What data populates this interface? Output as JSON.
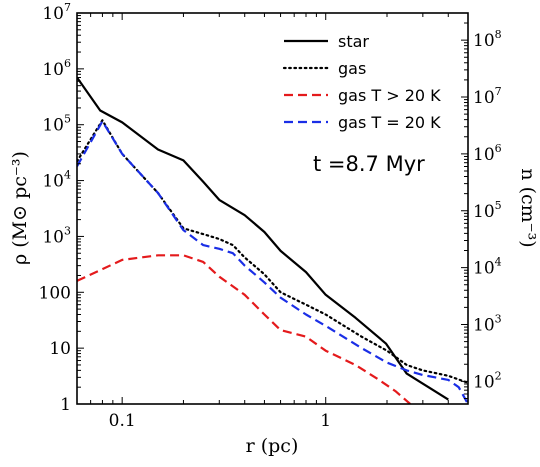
{
  "chart_data": {
    "type": "line",
    "xlabel": "r (pc)",
    "ylabel": "ρ (M⊙ pc⁻³)",
    "ylabel2": "n (cm⁻³)",
    "xscale": "log",
    "yscale": "log",
    "xlim": [
      0.06,
      5.0
    ],
    "ylim": [
      1,
      10000000
    ],
    "y2lim": [
      40,
      300000000
    ],
    "annotation": "t =8.7 Myr",
    "legend_position": "top-right",
    "x_ticks": [
      {
        "value": 0.1,
        "label": "0.1"
      },
      {
        "value": 1,
        "label": "1"
      }
    ],
    "y_ticks": [
      {
        "value": 1,
        "base": "1",
        "exp": ""
      },
      {
        "value": 10,
        "base": "10",
        "exp": ""
      },
      {
        "value": 100,
        "base": "100",
        "exp": ""
      },
      {
        "value": 1000,
        "base": "10",
        "exp": "3"
      },
      {
        "value": 10000,
        "base": "10",
        "exp": "4"
      },
      {
        "value": 100000,
        "base": "10",
        "exp": "5"
      },
      {
        "value": 1000000,
        "base": "10",
        "exp": "6"
      },
      {
        "value": 10000000,
        "base": "10",
        "exp": "7"
      }
    ],
    "y2_ticks": [
      {
        "value": 100,
        "base": "10",
        "exp": "2"
      },
      {
        "value": 1000,
        "base": "10",
        "exp": "3"
      },
      {
        "value": 10000,
        "base": "10",
        "exp": "4"
      },
      {
        "value": 100000,
        "base": "10",
        "exp": "5"
      },
      {
        "value": 1000000,
        "base": "10",
        "exp": "6"
      },
      {
        "value": 10000000,
        "base": "10",
        "exp": "7"
      },
      {
        "value": 100000000,
        "base": "10",
        "exp": "8"
      }
    ],
    "series": [
      {
        "name": "star",
        "color": "#000000",
        "dash": "solid",
        "x": [
          0.06,
          0.078,
          0.1,
          0.15,
          0.2,
          0.25,
          0.3,
          0.4,
          0.5,
          0.6,
          0.8,
          1.0,
          1.4,
          1.98,
          2.5,
          3.2,
          4.0
        ],
        "y": [
          700000,
          180000,
          110000,
          36000,
          23000,
          9500,
          4500,
          2400,
          1200,
          550,
          230,
          90,
          35,
          12,
          3.5,
          2.0,
          1.2
        ]
      },
      {
        "name": "gas",
        "color": "#000000",
        "dash": "dotted",
        "x": [
          0.06,
          0.08,
          0.1,
          0.15,
          0.2,
          0.25,
          0.3,
          0.35,
          0.4,
          0.5,
          0.6,
          0.8,
          1.0,
          1.5,
          2.0,
          2.5,
          3.0,
          4.0,
          5.0
        ],
        "y": [
          22000,
          120000,
          30000,
          6000,
          1400,
          1100,
          900,
          700,
          420,
          210,
          100,
          60,
          40,
          16,
          9,
          5,
          4,
          3.2,
          2.4
        ]
      },
      {
        "name": "gas T > 20 K",
        "color": "#e41a1c",
        "dash": "dashed",
        "x": [
          0.06,
          0.08,
          0.1,
          0.15,
          0.2,
          0.25,
          0.3,
          0.4,
          0.5,
          0.6,
          0.8,
          1.0,
          1.4,
          1.8,
          2.2,
          2.6
        ],
        "y": [
          160,
          260,
          380,
          460,
          460,
          350,
          190,
          90,
          40,
          21,
          16,
          9,
          5,
          2.8,
          1.7,
          1.0
        ]
      },
      {
        "name": "gas T = 20 K",
        "color": "#1a2ee6",
        "dash": "dashed",
        "x": [
          0.06,
          0.08,
          0.1,
          0.15,
          0.2,
          0.25,
          0.3,
          0.35,
          0.4,
          0.5,
          0.6,
          0.8,
          1.0,
          1.5,
          2.0,
          2.5,
          3.0,
          4.0,
          4.5,
          5.0
        ],
        "y": [
          18000,
          115000,
          30000,
          6000,
          1300,
          700,
          600,
          500,
          300,
          150,
          80,
          40,
          25,
          10,
          5.5,
          4,
          3.3,
          2.7,
          2.0,
          1.0
        ]
      }
    ]
  }
}
